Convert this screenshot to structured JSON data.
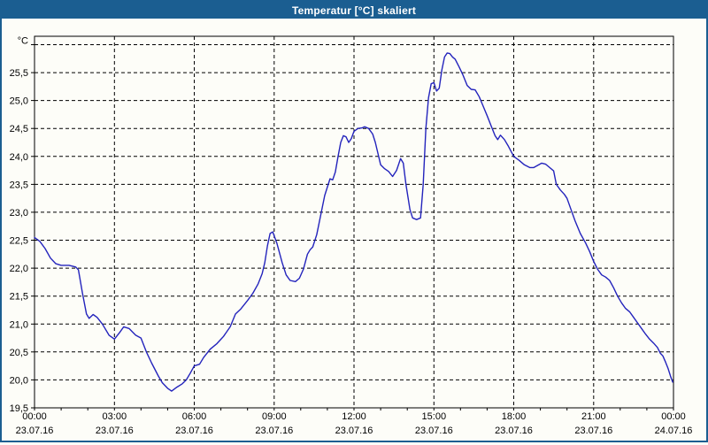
{
  "window": {
    "title": "Temperatur [°C] skaliert"
  },
  "colors": {
    "titlebar_bg": "#1b5e91",
    "frame_border": "#1b5e91",
    "page_bg": "#fdfdf8",
    "line": "#2323bc",
    "grid": "#000000",
    "text": "#000000",
    "title_text": "#ffffff"
  },
  "chart_data": {
    "type": "line",
    "title": "Temperatur [°C] skaliert",
    "grid": "dashed",
    "legend": "none",
    "y_axis": {
      "unit": "°C",
      "min": 19.5,
      "max": 26.15,
      "grid_step": 0.5,
      "grid_values": [
        20.0,
        20.5,
        21.0,
        21.5,
        22.0,
        22.5,
        23.0,
        23.5,
        24.0,
        24.5,
        25.0,
        25.5,
        26.0
      ],
      "tick_values": [
        19.5,
        20.0,
        20.5,
        21.0,
        21.5,
        22.0,
        22.5,
        23.0,
        23.5,
        24.0,
        24.5,
        25.0,
        25.5
      ],
      "tick_labels": [
        "19,5",
        "20,0",
        "20,5",
        "21,0",
        "21,5",
        "22,0",
        "22,5",
        "23,0",
        "23,5",
        "24,0",
        "24,5",
        "25,0",
        "25,5"
      ]
    },
    "x_axis": {
      "range_hours": [
        0,
        24
      ],
      "minor_tick_every_hours": 1,
      "major_grid_every_hours": 3,
      "ticks": [
        {
          "hour": 0,
          "time": "00:00",
          "date": "23.07.16"
        },
        {
          "hour": 3,
          "time": "03:00",
          "date": "23.07.16"
        },
        {
          "hour": 6,
          "time": "06:00",
          "date": "23.07.16"
        },
        {
          "hour": 9,
          "time": "09:00",
          "date": "23.07.16"
        },
        {
          "hour": 12,
          "time": "12:00",
          "date": "23.07.16"
        },
        {
          "hour": 15,
          "time": "15:00",
          "date": "23.07.16"
        },
        {
          "hour": 18,
          "time": "18:00",
          "date": "23.07.16"
        },
        {
          "hour": 21,
          "time": "21:00",
          "date": "23.07.16"
        },
        {
          "hour": 24,
          "time": "00:00",
          "date": "24.07.16"
        }
      ]
    },
    "series": [
      {
        "name": "Temperatur",
        "unit": "°C",
        "color": "#2323bc",
        "points": [
          [
            0,
            22.55
          ],
          [
            0.2,
            22.48
          ],
          [
            0.4,
            22.35
          ],
          [
            0.6,
            22.18
          ],
          [
            0.8,
            22.08
          ],
          [
            1.0,
            22.05
          ],
          [
            1.3,
            22.05
          ],
          [
            1.55,
            22.02
          ],
          [
            1.65,
            21.97
          ],
          [
            1.8,
            21.55
          ],
          [
            1.95,
            21.18
          ],
          [
            2.05,
            21.1
          ],
          [
            2.2,
            21.17
          ],
          [
            2.35,
            21.12
          ],
          [
            2.55,
            21.0
          ],
          [
            2.8,
            20.8
          ],
          [
            3.0,
            20.73
          ],
          [
            3.2,
            20.85
          ],
          [
            3.35,
            20.95
          ],
          [
            3.55,
            20.92
          ],
          [
            3.8,
            20.8
          ],
          [
            4.0,
            20.75
          ],
          [
            4.2,
            20.5
          ],
          [
            4.4,
            20.3
          ],
          [
            4.65,
            20.07
          ],
          [
            4.8,
            19.95
          ],
          [
            5.0,
            19.85
          ],
          [
            5.15,
            19.8
          ],
          [
            5.35,
            19.87
          ],
          [
            5.55,
            19.93
          ],
          [
            5.7,
            20.0
          ],
          [
            5.85,
            20.12
          ],
          [
            6.0,
            20.25
          ],
          [
            6.2,
            20.28
          ],
          [
            6.35,
            20.4
          ],
          [
            6.6,
            20.55
          ],
          [
            6.85,
            20.65
          ],
          [
            7.1,
            20.78
          ],
          [
            7.35,
            20.95
          ],
          [
            7.55,
            21.18
          ],
          [
            7.75,
            21.27
          ],
          [
            8.0,
            21.42
          ],
          [
            8.2,
            21.55
          ],
          [
            8.4,
            21.72
          ],
          [
            8.55,
            21.9
          ],
          [
            8.65,
            22.1
          ],
          [
            8.75,
            22.4
          ],
          [
            8.85,
            22.62
          ],
          [
            8.95,
            22.65
          ],
          [
            9.1,
            22.45
          ],
          [
            9.3,
            22.1
          ],
          [
            9.45,
            21.88
          ],
          [
            9.6,
            21.78
          ],
          [
            9.8,
            21.76
          ],
          [
            9.95,
            21.82
          ],
          [
            10.1,
            21.98
          ],
          [
            10.25,
            22.25
          ],
          [
            10.35,
            22.33
          ],
          [
            10.45,
            22.38
          ],
          [
            10.6,
            22.6
          ],
          [
            10.75,
            22.95
          ],
          [
            10.9,
            23.3
          ],
          [
            11.0,
            23.45
          ],
          [
            11.1,
            23.6
          ],
          [
            11.2,
            23.58
          ],
          [
            11.3,
            23.72
          ],
          [
            11.4,
            24.0
          ],
          [
            11.5,
            24.25
          ],
          [
            11.6,
            24.37
          ],
          [
            11.7,
            24.35
          ],
          [
            11.8,
            24.25
          ],
          [
            11.9,
            24.32
          ],
          [
            12.0,
            24.45
          ],
          [
            12.15,
            24.5
          ],
          [
            12.3,
            24.51
          ],
          [
            12.4,
            24.53
          ],
          [
            12.55,
            24.5
          ],
          [
            12.7,
            24.4
          ],
          [
            12.8,
            24.25
          ],
          [
            12.9,
            24.05
          ],
          [
            13.0,
            23.85
          ],
          [
            13.15,
            23.78
          ],
          [
            13.3,
            23.73
          ],
          [
            13.45,
            23.64
          ],
          [
            13.6,
            23.75
          ],
          [
            13.75,
            23.96
          ],
          [
            13.85,
            23.88
          ],
          [
            13.95,
            23.5
          ],
          [
            14.1,
            23.05
          ],
          [
            14.2,
            22.9
          ],
          [
            14.35,
            22.87
          ],
          [
            14.5,
            22.9
          ],
          [
            14.6,
            23.5
          ],
          [
            14.7,
            24.5
          ],
          [
            14.8,
            25.05
          ],
          [
            14.9,
            25.3
          ],
          [
            15.0,
            25.32
          ],
          [
            15.1,
            25.17
          ],
          [
            15.2,
            25.22
          ],
          [
            15.3,
            25.55
          ],
          [
            15.4,
            25.78
          ],
          [
            15.5,
            25.85
          ],
          [
            15.6,
            25.84
          ],
          [
            15.7,
            25.78
          ],
          [
            15.8,
            25.74
          ],
          [
            15.95,
            25.6
          ],
          [
            16.1,
            25.45
          ],
          [
            16.25,
            25.27
          ],
          [
            16.4,
            25.2
          ],
          [
            16.55,
            25.19
          ],
          [
            16.7,
            25.07
          ],
          [
            16.85,
            24.9
          ],
          [
            17.0,
            24.73
          ],
          [
            17.15,
            24.55
          ],
          [
            17.3,
            24.37
          ],
          [
            17.4,
            24.3
          ],
          [
            17.5,
            24.38
          ],
          [
            17.65,
            24.3
          ],
          [
            17.8,
            24.18
          ],
          [
            18.0,
            24.0
          ],
          [
            18.2,
            23.93
          ],
          [
            18.4,
            23.85
          ],
          [
            18.6,
            23.8
          ],
          [
            18.75,
            23.8
          ],
          [
            18.9,
            23.84
          ],
          [
            19.05,
            23.88
          ],
          [
            19.2,
            23.86
          ],
          [
            19.35,
            23.8
          ],
          [
            19.5,
            23.74
          ],
          [
            19.6,
            23.5
          ],
          [
            19.75,
            23.4
          ],
          [
            19.9,
            23.32
          ],
          [
            20.0,
            23.25
          ],
          [
            20.15,
            23.05
          ],
          [
            20.3,
            22.85
          ],
          [
            20.5,
            22.62
          ],
          [
            20.7,
            22.45
          ],
          [
            20.85,
            22.3
          ],
          [
            21.0,
            22.12
          ],
          [
            21.15,
            21.98
          ],
          [
            21.3,
            21.88
          ],
          [
            21.45,
            21.84
          ],
          [
            21.6,
            21.78
          ],
          [
            21.75,
            21.65
          ],
          [
            21.9,
            21.5
          ],
          [
            22.05,
            21.38
          ],
          [
            22.2,
            21.28
          ],
          [
            22.35,
            21.22
          ],
          [
            22.5,
            21.12
          ],
          [
            22.65,
            21.02
          ],
          [
            22.8,
            20.92
          ],
          [
            22.95,
            20.82
          ],
          [
            23.1,
            20.73
          ],
          [
            23.25,
            20.66
          ],
          [
            23.4,
            20.58
          ],
          [
            23.5,
            20.48
          ],
          [
            23.6,
            20.43
          ],
          [
            23.7,
            20.32
          ],
          [
            23.8,
            20.2
          ],
          [
            23.9,
            20.05
          ],
          [
            23.97,
            19.96
          ]
        ]
      }
    ]
  }
}
